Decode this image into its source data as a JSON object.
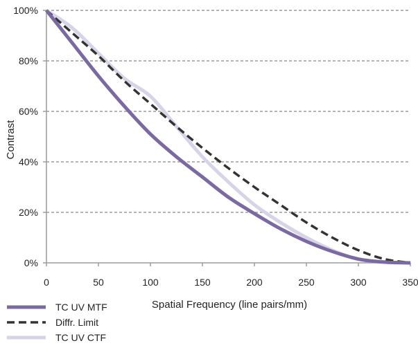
{
  "chart_data": {
    "type": "line",
    "title": "",
    "xlabel": "Spatial Frequency (line pairs/mm)",
    "ylabel": "Contrast",
    "xlim": [
      0,
      350
    ],
    "ylim": [
      0,
      100
    ],
    "x_ticks": [
      0,
      50,
      100,
      150,
      200,
      250,
      300,
      350
    ],
    "x_tick_labels": [
      "0",
      "50",
      "100",
      "150",
      "200",
      "250",
      "300",
      "350"
    ],
    "y_ticks": [
      0,
      20,
      40,
      60,
      80,
      100
    ],
    "y_tick_labels": [
      "0%",
      "20%",
      "40%",
      "60%",
      "80%",
      "100%"
    ],
    "grid": "horizontal dashed",
    "legend_position": "bottom-left",
    "series": [
      {
        "name": "TC UV MTF",
        "color": "#7b6aa1",
        "style": "solid",
        "x": [
          0,
          25,
          50,
          75,
          100,
          125,
          150,
          175,
          200,
          225,
          250,
          275,
          300,
          325,
          350
        ],
        "y": [
          100,
          87,
          74,
          62,
          51,
          42,
          34,
          26,
          19.5,
          13.5,
          8.5,
          4.5,
          1.5,
          0.3,
          0
        ]
      },
      {
        "name": "Diffr. Limit",
        "color": "#333333",
        "style": "dashed",
        "x": [
          0,
          25,
          50,
          75,
          100,
          125,
          150,
          175,
          200,
          225,
          250,
          275,
          300,
          325,
          350
        ],
        "y": [
          100,
          91,
          82,
          72,
          63,
          54,
          45.5,
          37.5,
          30,
          23,
          16,
          10,
          5,
          1.5,
          0
        ]
      },
      {
        "name": "TC UV CTF",
        "color": "#d8d4e8",
        "style": "solid",
        "x": [
          0,
          25,
          50,
          75,
          100,
          125,
          150,
          175,
          200,
          225,
          250,
          275,
          300,
          325,
          350
        ],
        "y": [
          100,
          93,
          83,
          73,
          66,
          54,
          42,
          32,
          23,
          16,
          10,
          5,
          1.5,
          0.3,
          0
        ]
      }
    ]
  }
}
